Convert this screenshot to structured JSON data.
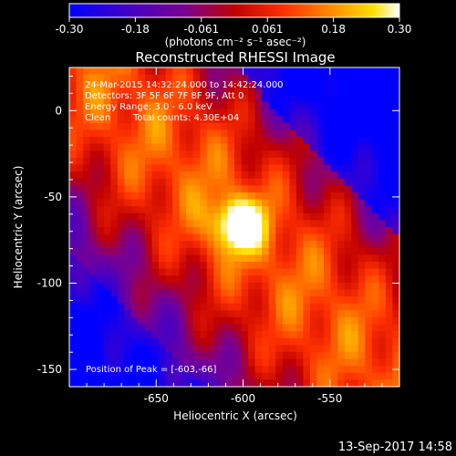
{
  "chart_data": {
    "type": "heatmap",
    "title": "Reconstructed RHESSI Image",
    "xlabel": "Heliocentric X (arcsec)",
    "ylabel": "Heliocentric Y (arcsec)",
    "xlim": [
      -700,
      -510
    ],
    "ylim": [
      -160,
      25
    ],
    "x_ticks": [
      -650,
      -600,
      -550
    ],
    "y_ticks": [
      0,
      -50,
      -100,
      -150
    ],
    "colorbar": {
      "min": -0.3,
      "max": 0.3,
      "ticks": [
        "-0.30",
        "-0.18",
        "-0.061",
        "0.061",
        "0.18",
        "0.30"
      ],
      "unit_label": "(photons cm⁻² s⁻¹ asec⁻²)",
      "colormap": [
        "#0000ff",
        "#3a00b0",
        "#6a00a8",
        "#b00000",
        "#ff2000",
        "#ff8000",
        "#ffd000",
        "#ffffff"
      ]
    },
    "peak": {
      "x": -603,
      "y": -66,
      "value": 0.3
    },
    "annotations": [
      "24-Mar-2015 14:32:24.000 to 14:42:24.000",
      "Detectors: 3F 5F 6F 7F 8F 9F, Att 0",
      "Energy Range: 3.0 - 6.0 keV",
      "Clean",
      "Total counts: 4.30E+04"
    ],
    "peak_label": "Position of Peak = [-603,-66]"
  },
  "footer": {
    "date": "13-Sep-2017 14:58"
  }
}
